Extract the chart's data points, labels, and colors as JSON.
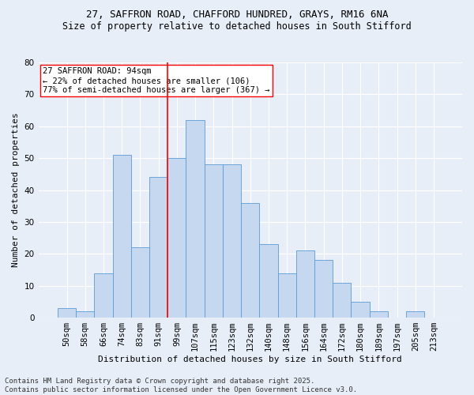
{
  "title_line1": "27, SAFFRON ROAD, CHAFFORD HUNDRED, GRAYS, RM16 6NA",
  "title_line2": "Size of property relative to detached houses in South Stifford",
  "xlabel": "Distribution of detached houses by size in South Stifford",
  "ylabel": "Number of detached properties",
  "categories": [
    "50sqm",
    "58sqm",
    "66sqm",
    "74sqm",
    "83sqm",
    "91sqm",
    "99sqm",
    "107sqm",
    "115sqm",
    "123sqm",
    "132sqm",
    "140sqm",
    "148sqm",
    "156sqm",
    "164sqm",
    "172sqm",
    "180sqm",
    "189sqm",
    "197sqm",
    "205sqm",
    "213sqm"
  ],
  "values": [
    3,
    2,
    14,
    51,
    22,
    44,
    50,
    62,
    48,
    48,
    36,
    23,
    14,
    21,
    18,
    11,
    5,
    2,
    0,
    2,
    0
  ],
  "bar_color": "#c5d8f0",
  "bar_edge_color": "#5b9bd5",
  "vline_x_index": 5.5,
  "vline_color": "red",
  "annotation_text": "27 SAFFRON ROAD: 94sqm\n← 22% of detached houses are smaller (106)\n77% of semi-detached houses are larger (367) →",
  "annotation_box_color": "white",
  "annotation_box_edge": "red",
  "ylim": [
    0,
    80
  ],
  "yticks": [
    0,
    10,
    20,
    30,
    40,
    50,
    60,
    70,
    80
  ],
  "background_color": "#e8eef7",
  "plot_background": "#e8eef7",
  "footer_line1": "Contains HM Land Registry data © Crown copyright and database right 2025.",
  "footer_line2": "Contains public sector information licensed under the Open Government Licence v3.0.",
  "title_fontsize": 9,
  "subtitle_fontsize": 8.5,
  "axis_label_fontsize": 8,
  "tick_fontsize": 7.5,
  "annotation_fontsize": 7.5,
  "footer_fontsize": 6.5
}
